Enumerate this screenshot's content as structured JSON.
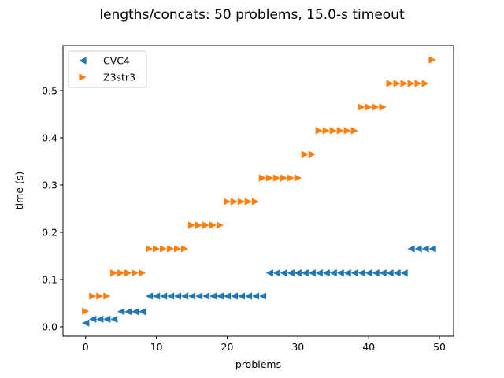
{
  "chart_data": {
    "type": "scatter",
    "title": "lengths/concats: 50 problems, 15.0-s timeout",
    "xlabel": "problems",
    "ylabel": "time (s)",
    "xlim": [
      -3.2,
      52.0
    ],
    "ylim": [
      -0.02,
      0.595
    ],
    "xticks": [
      0,
      10,
      20,
      30,
      40,
      50
    ],
    "yticks": [
      0.0,
      0.1,
      0.2,
      0.3,
      0.4,
      0.5
    ],
    "ytick_labels": [
      "0.0",
      "0.1",
      "0.2",
      "0.3",
      "0.4",
      "0.5"
    ],
    "grid": false,
    "legend": "top-left",
    "series": [
      {
        "name": "CVC4",
        "color": "#1f77b4",
        "marker": "triangle-left",
        "x": [
          0,
          1,
          2,
          3,
          4,
          5,
          6,
          7,
          8,
          9,
          10,
          11,
          12,
          13,
          14,
          15,
          16,
          17,
          18,
          19,
          20,
          21,
          22,
          23,
          24,
          25,
          26,
          27,
          28,
          29,
          30,
          31,
          32,
          33,
          34,
          35,
          36,
          37,
          38,
          39,
          40,
          41,
          42,
          43,
          44,
          45,
          46,
          47,
          48,
          49
        ],
        "y": [
          0.008,
          0.016,
          0.016,
          0.016,
          0.016,
          0.032,
          0.032,
          0.032,
          0.032,
          0.065,
          0.065,
          0.065,
          0.065,
          0.065,
          0.065,
          0.065,
          0.065,
          0.065,
          0.065,
          0.065,
          0.065,
          0.065,
          0.065,
          0.065,
          0.065,
          0.065,
          0.114,
          0.114,
          0.114,
          0.114,
          0.114,
          0.114,
          0.114,
          0.114,
          0.114,
          0.114,
          0.114,
          0.114,
          0.114,
          0.114,
          0.114,
          0.114,
          0.114,
          0.114,
          0.114,
          0.114,
          0.165,
          0.165,
          0.165,
          0.165
        ]
      },
      {
        "name": "Z3str3",
        "color": "#ff7f0e",
        "marker": "triangle-right",
        "x": [
          0,
          1,
          2,
          3,
          4,
          5,
          6,
          7,
          8,
          9,
          10,
          11,
          12,
          13,
          14,
          15,
          16,
          17,
          18,
          19,
          20,
          21,
          22,
          23,
          24,
          25,
          26,
          27,
          28,
          29,
          30,
          31,
          32,
          33,
          34,
          35,
          36,
          37,
          38,
          39,
          40,
          41,
          42,
          43,
          44,
          45,
          46,
          47,
          48,
          49
        ],
        "y": [
          0.033,
          0.065,
          0.065,
          0.065,
          0.114,
          0.114,
          0.114,
          0.114,
          0.114,
          0.165,
          0.165,
          0.165,
          0.165,
          0.165,
          0.165,
          0.215,
          0.215,
          0.215,
          0.215,
          0.215,
          0.265,
          0.265,
          0.265,
          0.265,
          0.265,
          0.315,
          0.315,
          0.315,
          0.315,
          0.315,
          0.315,
          0.365,
          0.365,
          0.415,
          0.415,
          0.415,
          0.415,
          0.415,
          0.415,
          0.465,
          0.465,
          0.465,
          0.465,
          0.515,
          0.515,
          0.515,
          0.515,
          0.515,
          0.515,
          0.565
        ]
      }
    ]
  }
}
